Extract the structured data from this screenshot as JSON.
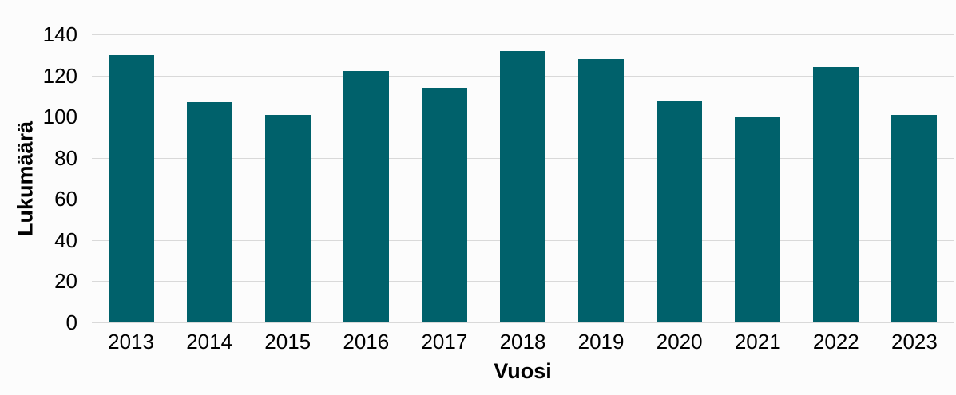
{
  "chart_data": {
    "type": "bar",
    "title": "",
    "categories": [
      "2013",
      "2014",
      "2015",
      "2016",
      "2017",
      "2018",
      "2019",
      "2020",
      "2021",
      "2022",
      "2023"
    ],
    "values": [
      130,
      107,
      101,
      122,
      114,
      132,
      128,
      108,
      100,
      124,
      101
    ],
    "xlabel": "Vuosi",
    "ylabel": "Lukumäärä",
    "ylim": [
      0,
      140
    ],
    "yticks": [
      0,
      20,
      40,
      60,
      80,
      100,
      120,
      140
    ],
    "grid": "horizontal",
    "legend": "none",
    "colors": {
      "bar": "#00616b",
      "gridline": "#d9d9d9",
      "text": "#000000",
      "background": "#fcfcfc"
    }
  }
}
